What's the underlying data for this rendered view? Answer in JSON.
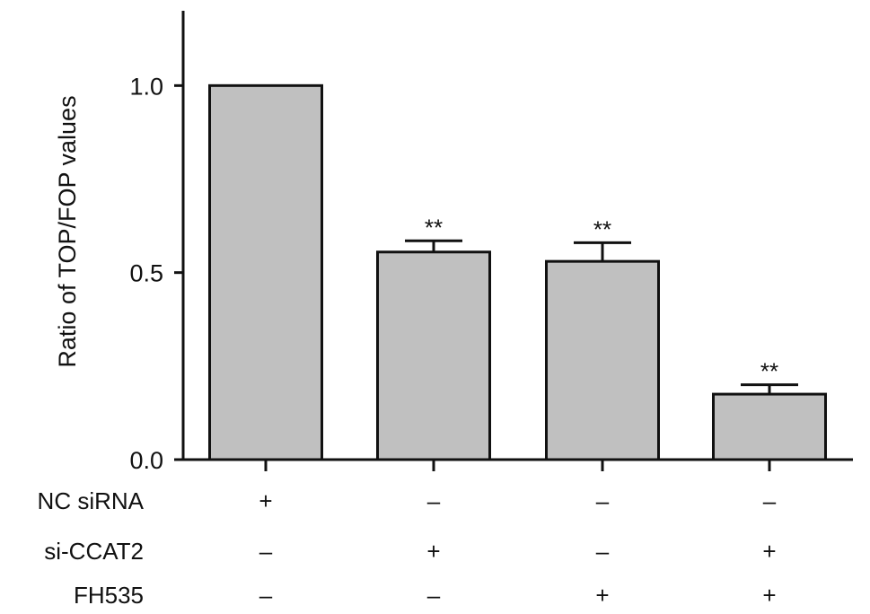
{
  "chart_data": {
    "type": "bar",
    "ylabel": "Ratio of TOP/FOP values",
    "ylim": [
      0,
      1.2
    ],
    "yticks": [
      "0.0",
      "0.5",
      "1.0"
    ],
    "ytick_values": [
      0,
      0.5,
      1.0
    ],
    "bar_color": "#c0c0c0",
    "series": [
      {
        "values": [
          1.0,
          0.555,
          0.53,
          0.175
        ],
        "errors": [
          0,
          0.03,
          0.05,
          0.025
        ],
        "significance": [
          "",
          "**",
          "**",
          "**"
        ]
      }
    ],
    "treatment_rows": [
      {
        "label": "NC siRNA",
        "signs": [
          "+",
          "–",
          "–",
          "–"
        ]
      },
      {
        "label": "si-CCAT2",
        "signs": [
          "–",
          "+",
          "–",
          "+"
        ]
      },
      {
        "label": "FH535",
        "signs": [
          "–",
          "–",
          "+",
          "+"
        ]
      }
    ]
  }
}
